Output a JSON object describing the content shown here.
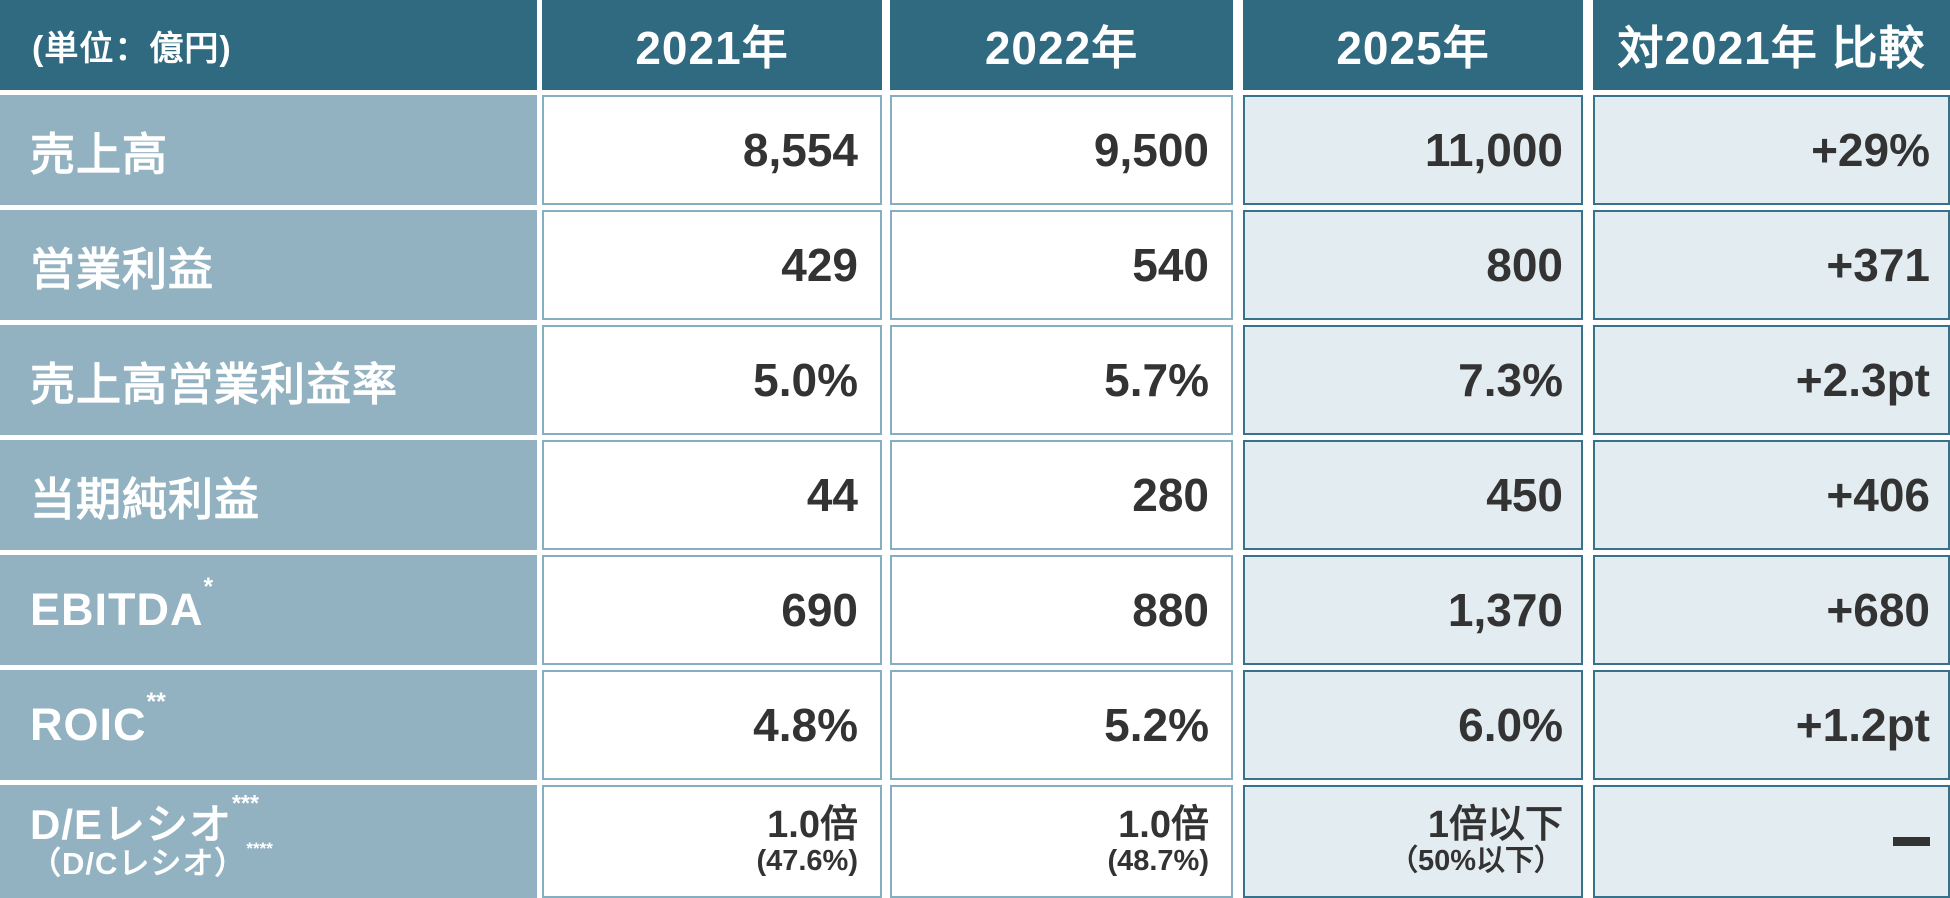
{
  "header": {
    "unit": "(単位：億円)",
    "y2021": "2021年",
    "y2022": "2022年",
    "y2025": "2025年",
    "vs": "対2021年 比較"
  },
  "rows": [
    {
      "label": "売上高",
      "label_sup": "",
      "y2021": "8,554",
      "y2022": "9,500",
      "y2025": "11,000",
      "vs": "+29%"
    },
    {
      "label": "営業利益",
      "label_sup": "",
      "y2021": "429",
      "y2022": "540",
      "y2025": "800",
      "vs": "+371"
    },
    {
      "label": "売上高営業利益率",
      "label_sup": "",
      "y2021": "5.0%",
      "y2022": "5.7%",
      "y2025": "7.3%",
      "vs": "+2.3pt"
    },
    {
      "label": "当期純利益",
      "label_sup": "",
      "y2021": "44",
      "y2022": "280",
      "y2025": "450",
      "vs": "+406"
    },
    {
      "label": "EBITDA",
      "label_sup": "*",
      "y2021": "690",
      "y2022": "880",
      "y2025": "1,370",
      "vs": "+680"
    },
    {
      "label": "ROIC",
      "label_sup": "**",
      "y2021": "4.8%",
      "y2022": "5.2%",
      "y2025": "6.0%",
      "vs": "+1.2pt"
    },
    {
      "label": "D/Eレシオ",
      "label_sup": "***",
      "label_sub": "（D/Cレシオ）",
      "label_sub_sup": "****",
      "y2021": "1.0倍",
      "y2021_sub": "(47.6%)",
      "y2022": "1.0倍",
      "y2022_sub": "(48.7%)",
      "y2025": "1倍以下",
      "y2025_sub": "（50%以下）",
      "vs": "—"
    }
  ],
  "colors": {
    "header_bg": "#2F6A80",
    "label_bg": "#92B2C1",
    "light_cell_bg": "#E3ECF1",
    "white_cell_border": "#85AFC0",
    "light_cell_border": "#37718A",
    "value_text": "#333333",
    "header_text": "#FFFFFF"
  },
  "chart_data": {
    "type": "table",
    "title": "(単位：億円)",
    "columns": [
      "(単位：億円)",
      "2021年",
      "2022年",
      "2025年",
      "対2021年 比較"
    ],
    "rows": [
      [
        "売上高",
        "8,554",
        "9,500",
        "11,000",
        "+29%"
      ],
      [
        "営業利益",
        "429",
        "540",
        "800",
        "+371"
      ],
      [
        "売上高営業利益率",
        "5.0%",
        "5.7%",
        "7.3%",
        "+2.3pt"
      ],
      [
        "当期純利益",
        "44",
        "280",
        "450",
        "+406"
      ],
      [
        "EBITDA*",
        "690",
        "880",
        "1,370",
        "+680"
      ],
      [
        "ROIC**",
        "4.8%",
        "5.2%",
        "6.0%",
        "+1.2pt"
      ],
      [
        "D/Eレシオ***（D/Cレシオ）****",
        "1.0倍 (47.6%)",
        "1.0倍 (48.7%)",
        "1倍以下（50%以下）",
        "—"
      ]
    ]
  }
}
